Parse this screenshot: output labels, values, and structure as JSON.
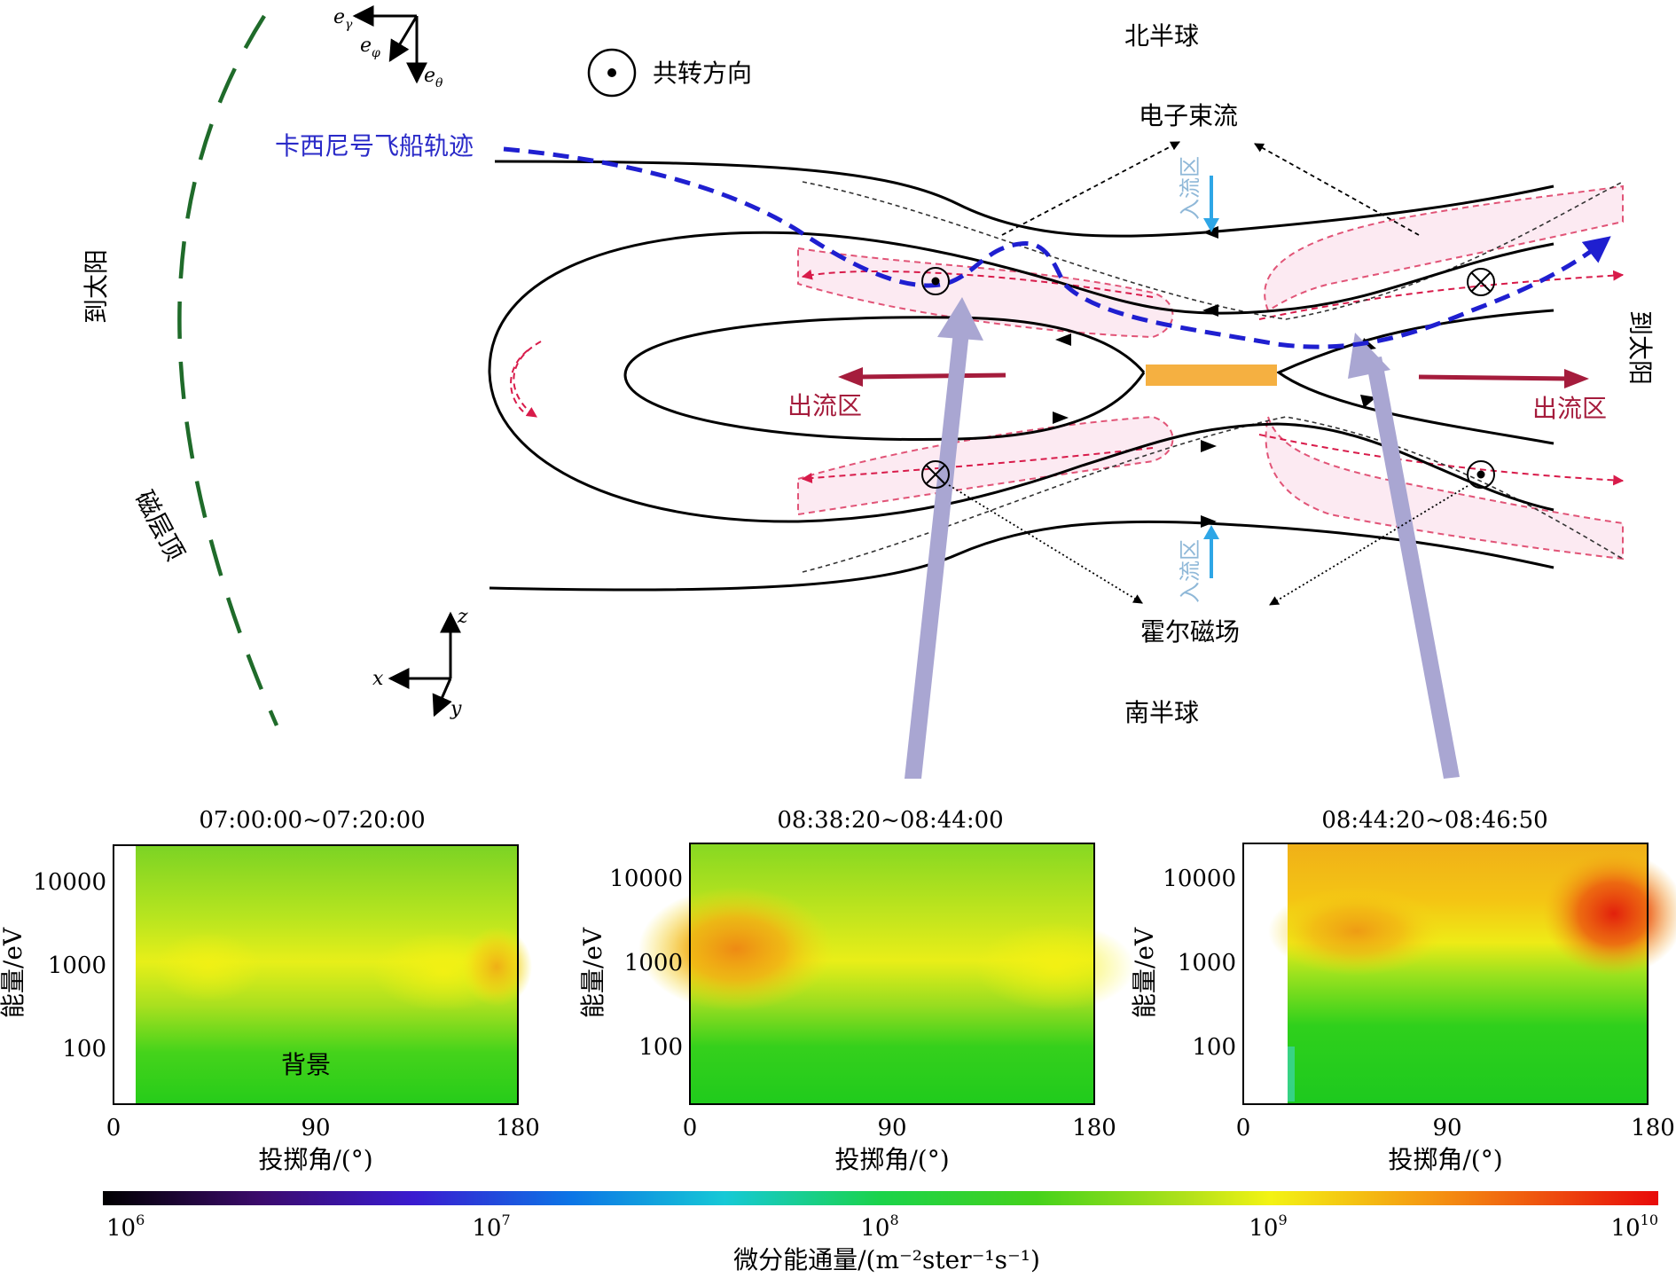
{
  "labels": {
    "north_hemisphere": "北半球",
    "south_hemisphere": "南半球",
    "corotation": "共转方向",
    "cassini_trajectory": "卡西尼号飞船轨迹",
    "electron_beam": "电子束流",
    "inflow_region": "入流区",
    "outflow_region": "出流区",
    "hall_field": "霍尔磁场",
    "to_sun": "到太阳",
    "magnetopause": "磁层顶"
  },
  "axes_triad_top": {
    "e_gamma": "e",
    "e_gamma_sub": "γ",
    "e_phi": "e",
    "e_phi_sub": "φ",
    "e_theta": "e",
    "e_theta_sub": "θ"
  },
  "axes_triad_bottom": {
    "x": "x",
    "y": "y",
    "z": "z"
  },
  "colors": {
    "field_line": "#000000",
    "trajectory": "#1f1fd0",
    "magnetopause": "#1f6b2a",
    "separatrix": "#d81b4a",
    "outflow_arrow": "#a51c3c",
    "inflow_arrow": "#2ea6e6",
    "diffusion_region": "#f5b041",
    "beam_arrow": "#a9a6d2"
  },
  "panels": [
    {
      "title": "07:00:00~07:20:00",
      "annotation": "背景"
    },
    {
      "title": "08:38:20~08:44:00",
      "annotation": ""
    },
    {
      "title": "08:44:20~08:46:50",
      "annotation": ""
    }
  ],
  "panel_axes": {
    "xlabel": "投掷角/(°)",
    "ylabel": "能量/eV",
    "xticks": [
      "0",
      "90",
      "180"
    ],
    "yticks": [
      "10000",
      "1000",
      "100"
    ]
  },
  "colorbar": {
    "label": "微分能通量/(m⁻²ster⁻¹s⁻¹)",
    "ticks": [
      {
        "base": "10",
        "exp": "6"
      },
      {
        "base": "10",
        "exp": "7"
      },
      {
        "base": "10",
        "exp": "8"
      },
      {
        "base": "10",
        "exp": "9"
      },
      {
        "base": "10",
        "exp": "10"
      }
    ]
  }
}
